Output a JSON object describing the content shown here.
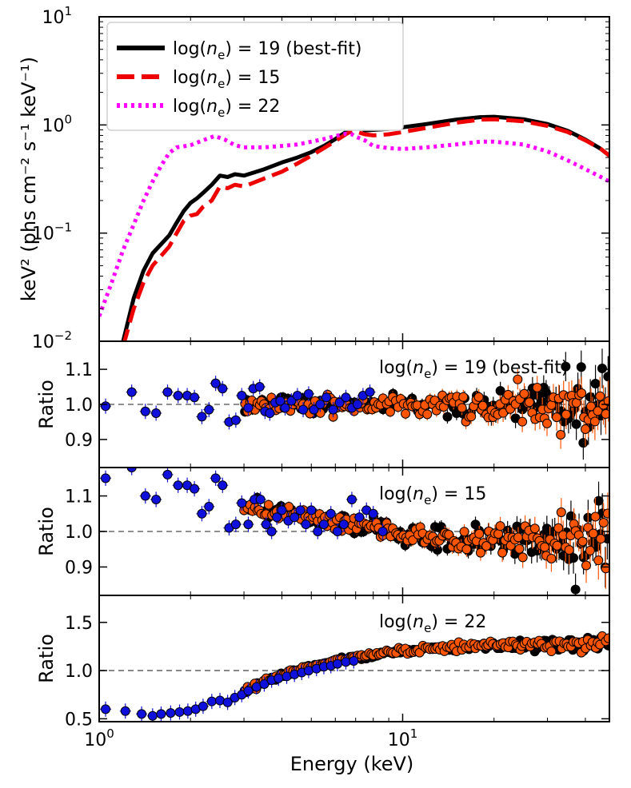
{
  "chart_data": [
    {
      "type": "line",
      "ylabel": "keV² (phs cm⁻² s⁻¹ keV⁻¹)",
      "xlabel": "",
      "xscale": "log",
      "yscale": "log",
      "xlim": [
        1.0,
        48.0
      ],
      "ylim": [
        0.01,
        10.0
      ],
      "legend": "top-left",
      "yticks": [
        {
          "value": 0.01,
          "base": "10",
          "exp": "−2"
        },
        {
          "value": 0.1,
          "base": "10",
          "exp": "−1"
        },
        {
          "value": 1.0,
          "base": "10",
          "exp": "0"
        },
        {
          "value": 10.0,
          "base": "10",
          "exp": "1"
        }
      ],
      "series": [
        {
          "name": "log(ne) = 19 (best-fit)",
          "legend_parts": [
            "log(",
            "n",
            "e",
            ") = 19 (best-fit)"
          ],
          "color": "#000000",
          "style": "solid",
          "x": [
            1.2,
            1.3,
            1.4,
            1.5,
            1.7,
            1.8,
            1.9,
            2.0,
            2.1,
            2.2,
            2.35,
            2.5,
            2.65,
            2.8,
            3.0,
            3.5,
            4.0,
            4.5,
            5.0,
            5.5,
            6.0,
            6.5,
            6.8,
            7.0,
            7.2,
            7.5,
            8.0,
            9.0,
            10.0,
            12.0,
            15.0,
            18.0,
            20.0,
            25.0,
            30.0,
            35.0,
            40.0,
            45.0,
            48.0
          ],
          "y": [
            0.01,
            0.025,
            0.045,
            0.065,
            0.095,
            0.125,
            0.16,
            0.19,
            0.21,
            0.235,
            0.28,
            0.34,
            0.33,
            0.35,
            0.34,
            0.39,
            0.45,
            0.5,
            0.56,
            0.64,
            0.74,
            0.86,
            0.97,
            0.99,
            0.97,
            0.89,
            0.9,
            0.92,
            0.95,
            1.02,
            1.12,
            1.18,
            1.19,
            1.13,
            1.02,
            0.88,
            0.73,
            0.6,
            0.52
          ]
        },
        {
          "name": "log(ne) = 15",
          "legend_parts": [
            "log(",
            "n",
            "e",
            ") = 15"
          ],
          "color": "#ee0000",
          "style": "dashed",
          "x": [
            1.2,
            1.3,
            1.4,
            1.5,
            1.7,
            1.8,
            1.9,
            2.0,
            2.1,
            2.2,
            2.35,
            2.5,
            2.65,
            2.8,
            3.0,
            3.5,
            4.0,
            4.5,
            5.0,
            5.5,
            6.0,
            6.5,
            6.8,
            7.0,
            7.5,
            8.0,
            9.0,
            10.0,
            12.0,
            15.0,
            18.0,
            20.0,
            25.0,
            30.0,
            35.0,
            40.0,
            45.0,
            48.0
          ],
          "y": [
            0.009,
            0.02,
            0.035,
            0.05,
            0.075,
            0.1,
            0.13,
            0.145,
            0.15,
            0.175,
            0.2,
            0.27,
            0.26,
            0.28,
            0.27,
            0.32,
            0.37,
            0.44,
            0.52,
            0.61,
            0.71,
            0.82,
            0.88,
            0.87,
            0.82,
            0.8,
            0.82,
            0.86,
            0.94,
            1.05,
            1.12,
            1.13,
            1.08,
            0.98,
            0.86,
            0.72,
            0.6,
            0.52
          ]
        },
        {
          "name": "log(ne) = 22",
          "legend_parts": [
            "log(",
            "n",
            "e",
            ") = 22"
          ],
          "color": "#ff00ff",
          "style": "dotted",
          "x": [
            1.0,
            1.1,
            1.2,
            1.3,
            1.4,
            1.5,
            1.6,
            1.7,
            1.8,
            2.0,
            2.2,
            2.4,
            2.6,
            2.8,
            3.0,
            3.5,
            4.0,
            4.5,
            5.0,
            5.5,
            6.0,
            6.5,
            6.8,
            7.0,
            7.5,
            8.0,
            9.0,
            10.0,
            12.0,
            15.0,
            18.0,
            20.0,
            25.0,
            30.0,
            35.0,
            40.0,
            45.0,
            48.0
          ],
          "y": [
            0.017,
            0.035,
            0.07,
            0.12,
            0.2,
            0.3,
            0.42,
            0.55,
            0.62,
            0.65,
            0.72,
            0.79,
            0.73,
            0.65,
            0.62,
            0.62,
            0.64,
            0.66,
            0.7,
            0.74,
            0.79,
            0.83,
            0.82,
            0.78,
            0.72,
            0.64,
            0.61,
            0.6,
            0.62,
            0.66,
            0.7,
            0.7,
            0.66,
            0.57,
            0.47,
            0.39,
            0.33,
            0.3
          ]
        }
      ]
    },
    {
      "type": "scatter",
      "annotation": ") = 19 (best-fit)",
      "annotation_parts": [
        "log(",
        "n",
        "e",
        ") = 19 (best-fit)"
      ],
      "ylabel": "Ratio",
      "xscale": "log",
      "xlim": [
        1.0,
        48.0
      ],
      "ylim": [
        0.82,
        1.18
      ],
      "yticks": [
        {
          "value": 0.9,
          "label": "0.9"
        },
        {
          "value": 1.0,
          "label": "1.0"
        },
        {
          "value": 1.1,
          "label": "1.1"
        }
      ],
      "reference_line": 1.0,
      "model": {
        "kind": "flat",
        "low_x": 3.0,
        "high_x": 48.0
      },
      "series": [
        {
          "name": "low-energy",
          "color": "#1010dd",
          "x": [
            1.05,
            1.28,
            1.42,
            1.54,
            1.68,
            1.82,
            1.95,
            2.06,
            2.18,
            2.3,
            2.42,
            2.55,
            2.68,
            2.82,
            2.95,
            3.1,
            3.22,
            3.38,
            3.52,
            3.65,
            3.8,
            3.95,
            4.1,
            4.3,
            4.5,
            4.7,
            4.9,
            5.1,
            5.35,
            5.6,
            5.9,
            6.2,
            6.5,
            6.8,
            7.1,
            7.4,
            7.8
          ],
          "y": [
            0.995,
            1.035,
            0.98,
            0.975,
            1.035,
            1.025,
            1.025,
            1.02,
            0.965,
            0.985,
            1.06,
            1.045,
            0.95,
            0.955,
            1.025,
            0.99,
            1.045,
            1.05,
            0.98,
            0.975,
            1.005,
            1.01,
            0.99,
            1.01,
            1.025,
            0.985,
            1.03,
            0.985,
            1.0,
            1.02,
            0.985,
            1.005,
            1.02,
            0.99,
            1.0,
            1.025,
            1.035
          ]
        },
        {
          "name": "high-energy-fpm",
          "color": "#000000",
          "scatter": 0.012,
          "noise_grow": 0.05,
          "count": 150
        },
        {
          "name": "high-energy-fpm-b",
          "color": "#ff5500",
          "scatter": 0.012,
          "noise_grow": 0.05,
          "count": 150
        }
      ]
    },
    {
      "type": "scatter",
      "annotation": ") = 15",
      "annotation_parts": [
        "log(",
        "n",
        "e",
        ") = 15"
      ],
      "ylabel": "Ratio",
      "xscale": "log",
      "xlim": [
        1.0,
        48.0
      ],
      "ylim": [
        0.82,
        1.18
      ],
      "yticks": [
        {
          "value": 0.9,
          "label": "0.9"
        },
        {
          "value": 1.0,
          "label": "1.0"
        },
        {
          "value": 1.1,
          "label": "1.1"
        }
      ],
      "reference_line": 1.0,
      "model": {
        "kind": "decline",
        "low_x": 3.0,
        "high_x": 48.0,
        "start": 1.07,
        "mid": 0.98,
        "end": 0.97
      },
      "series": [
        {
          "name": "low-energy",
          "color": "#1010dd",
          "x": [
            1.05,
            1.28,
            1.42,
            1.54,
            1.68,
            1.82,
            1.95,
            2.06,
            2.18,
            2.3,
            2.42,
            2.55,
            2.68,
            2.82,
            2.95,
            3.1,
            3.25,
            3.4,
            3.55,
            3.7,
            3.85,
            4.0,
            4.2,
            4.4,
            4.6,
            4.8,
            5.0,
            5.25,
            5.5,
            5.8,
            6.1,
            6.4,
            6.8,
            7.2,
            7.6,
            8.0,
            8.6
          ],
          "y": [
            1.15,
            1.18,
            1.1,
            1.09,
            1.16,
            1.13,
            1.13,
            1.12,
            1.05,
            1.07,
            1.15,
            1.13,
            1.01,
            1.02,
            1.08,
            1.02,
            1.09,
            1.09,
            1.02,
            1.0,
            1.04,
            1.06,
            1.03,
            1.04,
            1.06,
            1.02,
            1.06,
            1.0,
            1.02,
            1.05,
            1.0,
            1.02,
            1.09,
            1.04,
            1.06,
            1.05,
            1.0
          ]
        },
        {
          "name": "high-energy-fpm",
          "color": "#000000",
          "scatter": 0.012,
          "noise_grow": 0.05,
          "count": 150
        },
        {
          "name": "high-energy-fpm-b",
          "color": "#ff5500",
          "scatter": 0.012,
          "noise_grow": 0.05,
          "count": 150
        }
      ]
    },
    {
      "type": "scatter",
      "annotation": ") = 22",
      "annotation_parts": [
        "log(",
        "n",
        "e",
        ") = 22"
      ],
      "ylabel": "Ratio",
      "xlabel": "Energy (keV)",
      "xscale": "log",
      "xlim": [
        1.0,
        48.0
      ],
      "ylim": [
        0.47,
        1.78
      ],
      "yticks": [
        {
          "value": 0.5,
          "label": "0.5"
        },
        {
          "value": 1.0,
          "label": "1.0"
        },
        {
          "value": 1.5,
          "label": "1.5"
        }
      ],
      "xticks": [
        {
          "value": 1.0,
          "base": "10",
          "exp": "0"
        },
        {
          "value": 10.0,
          "base": "10",
          "exp": "1"
        }
      ],
      "reference_line": 1.0,
      "model": {
        "kind": "rise",
        "low_x": 3.0,
        "high_x": 48.0
      },
      "series": [
        {
          "name": "low-energy",
          "color": "#1010dd",
          "x": [
            1.05,
            1.22,
            1.38,
            1.5,
            1.6,
            1.72,
            1.84,
            1.96,
            2.08,
            2.2,
            2.35,
            2.5,
            2.65,
            2.8,
            2.95,
            3.1,
            3.3,
            3.5,
            3.7,
            3.9,
            4.15,
            4.4,
            4.65,
            4.9,
            5.2,
            5.5,
            5.8,
            6.1,
            6.5,
            6.9
          ],
          "y": [
            0.6,
            0.58,
            0.55,
            0.53,
            0.55,
            0.56,
            0.57,
            0.58,
            0.6,
            0.63,
            0.68,
            0.69,
            0.67,
            0.72,
            0.75,
            0.79,
            0.83,
            0.86,
            0.9,
            0.92,
            0.94,
            0.96,
            0.98,
            1.0,
            1.02,
            1.04,
            1.05,
            1.07,
            1.09,
            1.1
          ]
        },
        {
          "name": "high-energy-fpm",
          "color": "#000000",
          "scatter": 0.015,
          "noise_grow": 0.04,
          "count": 150
        },
        {
          "name": "high-energy-fpm-b",
          "color": "#ff5500",
          "scatter": 0.015,
          "noise_grow": 0.04,
          "count": 150
        }
      ]
    }
  ]
}
